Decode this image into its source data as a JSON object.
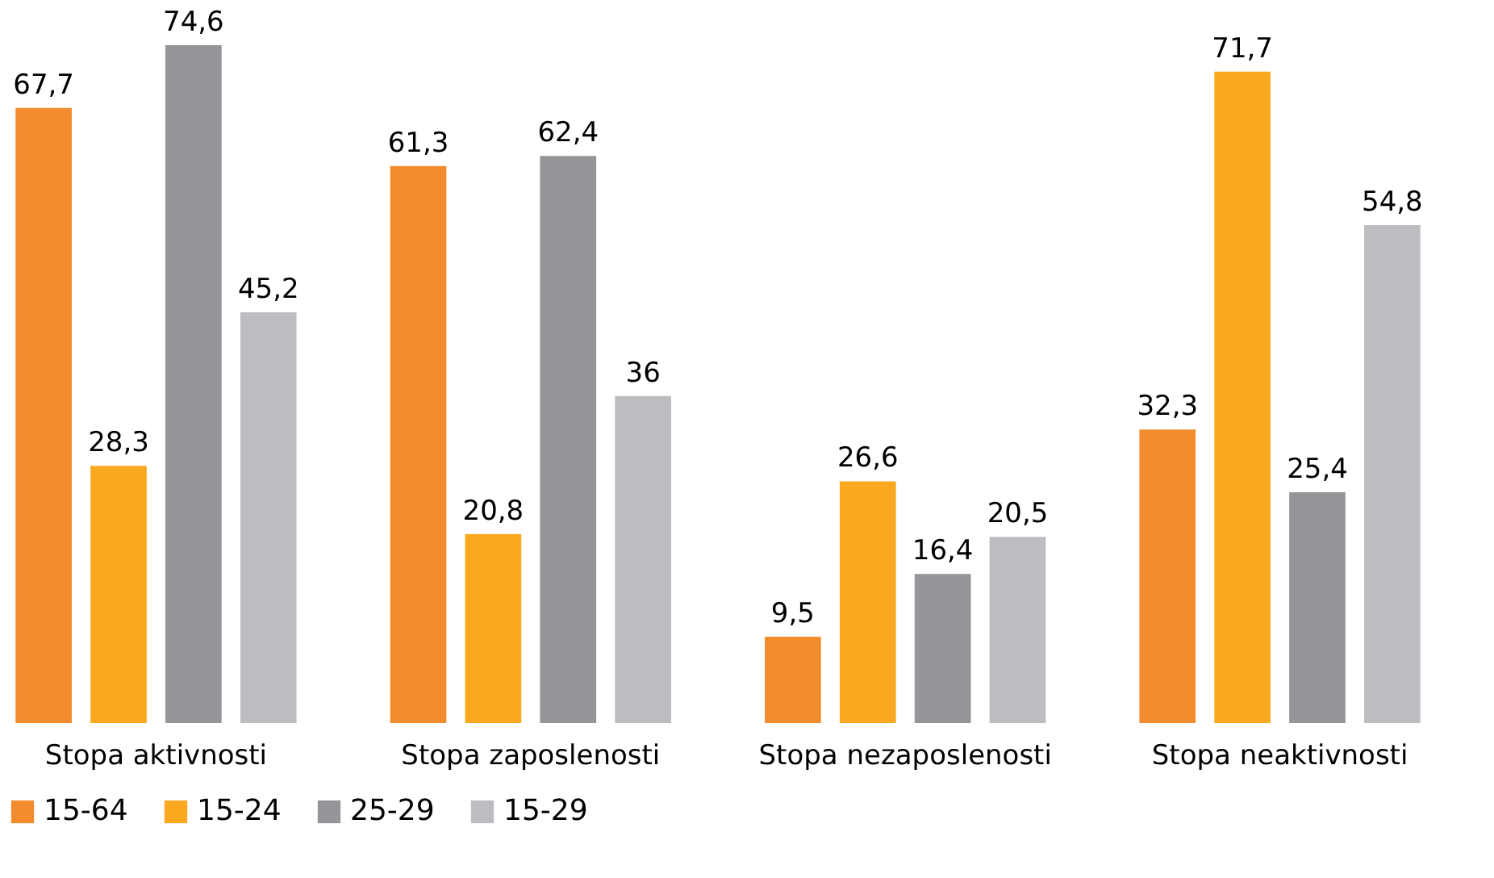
{
  "chart_data": {
    "type": "bar",
    "categories": [
      "Stopa aktivnosti",
      "Stopa zaposlenosti",
      "Stopa nezaposlenosti",
      "Stopa neaktivnosti"
    ],
    "series": [
      {
        "name": "15-64",
        "color": "#f28c2e",
        "values": [
          67.7,
          61.3,
          9.5,
          32.3
        ],
        "value_labels": [
          "67,7",
          "61,3",
          "9,5",
          "32,3"
        ]
      },
      {
        "name": "15-24",
        "color": "#f9a81f",
        "values": [
          28.3,
          20.8,
          26.6,
          71.7
        ],
        "value_labels": [
          "28,3",
          "20,8",
          "26,6",
          "71,7"
        ]
      },
      {
        "name": "25-29",
        "color": "#939598",
        "values": [
          74.6,
          62.4,
          16.4,
          25.4
        ],
        "value_labels": [
          "74,6",
          "62,4",
          "16,4",
          "25,4"
        ]
      },
      {
        "name": "15-29",
        "color": "#bcbdc1",
        "values": [
          45.2,
          36,
          20.5,
          54.8
        ],
        "value_labels": [
          "45,2",
          "36",
          "20,5",
          "54,8"
        ]
      }
    ],
    "legend": "bottom",
    "grid": false
  }
}
